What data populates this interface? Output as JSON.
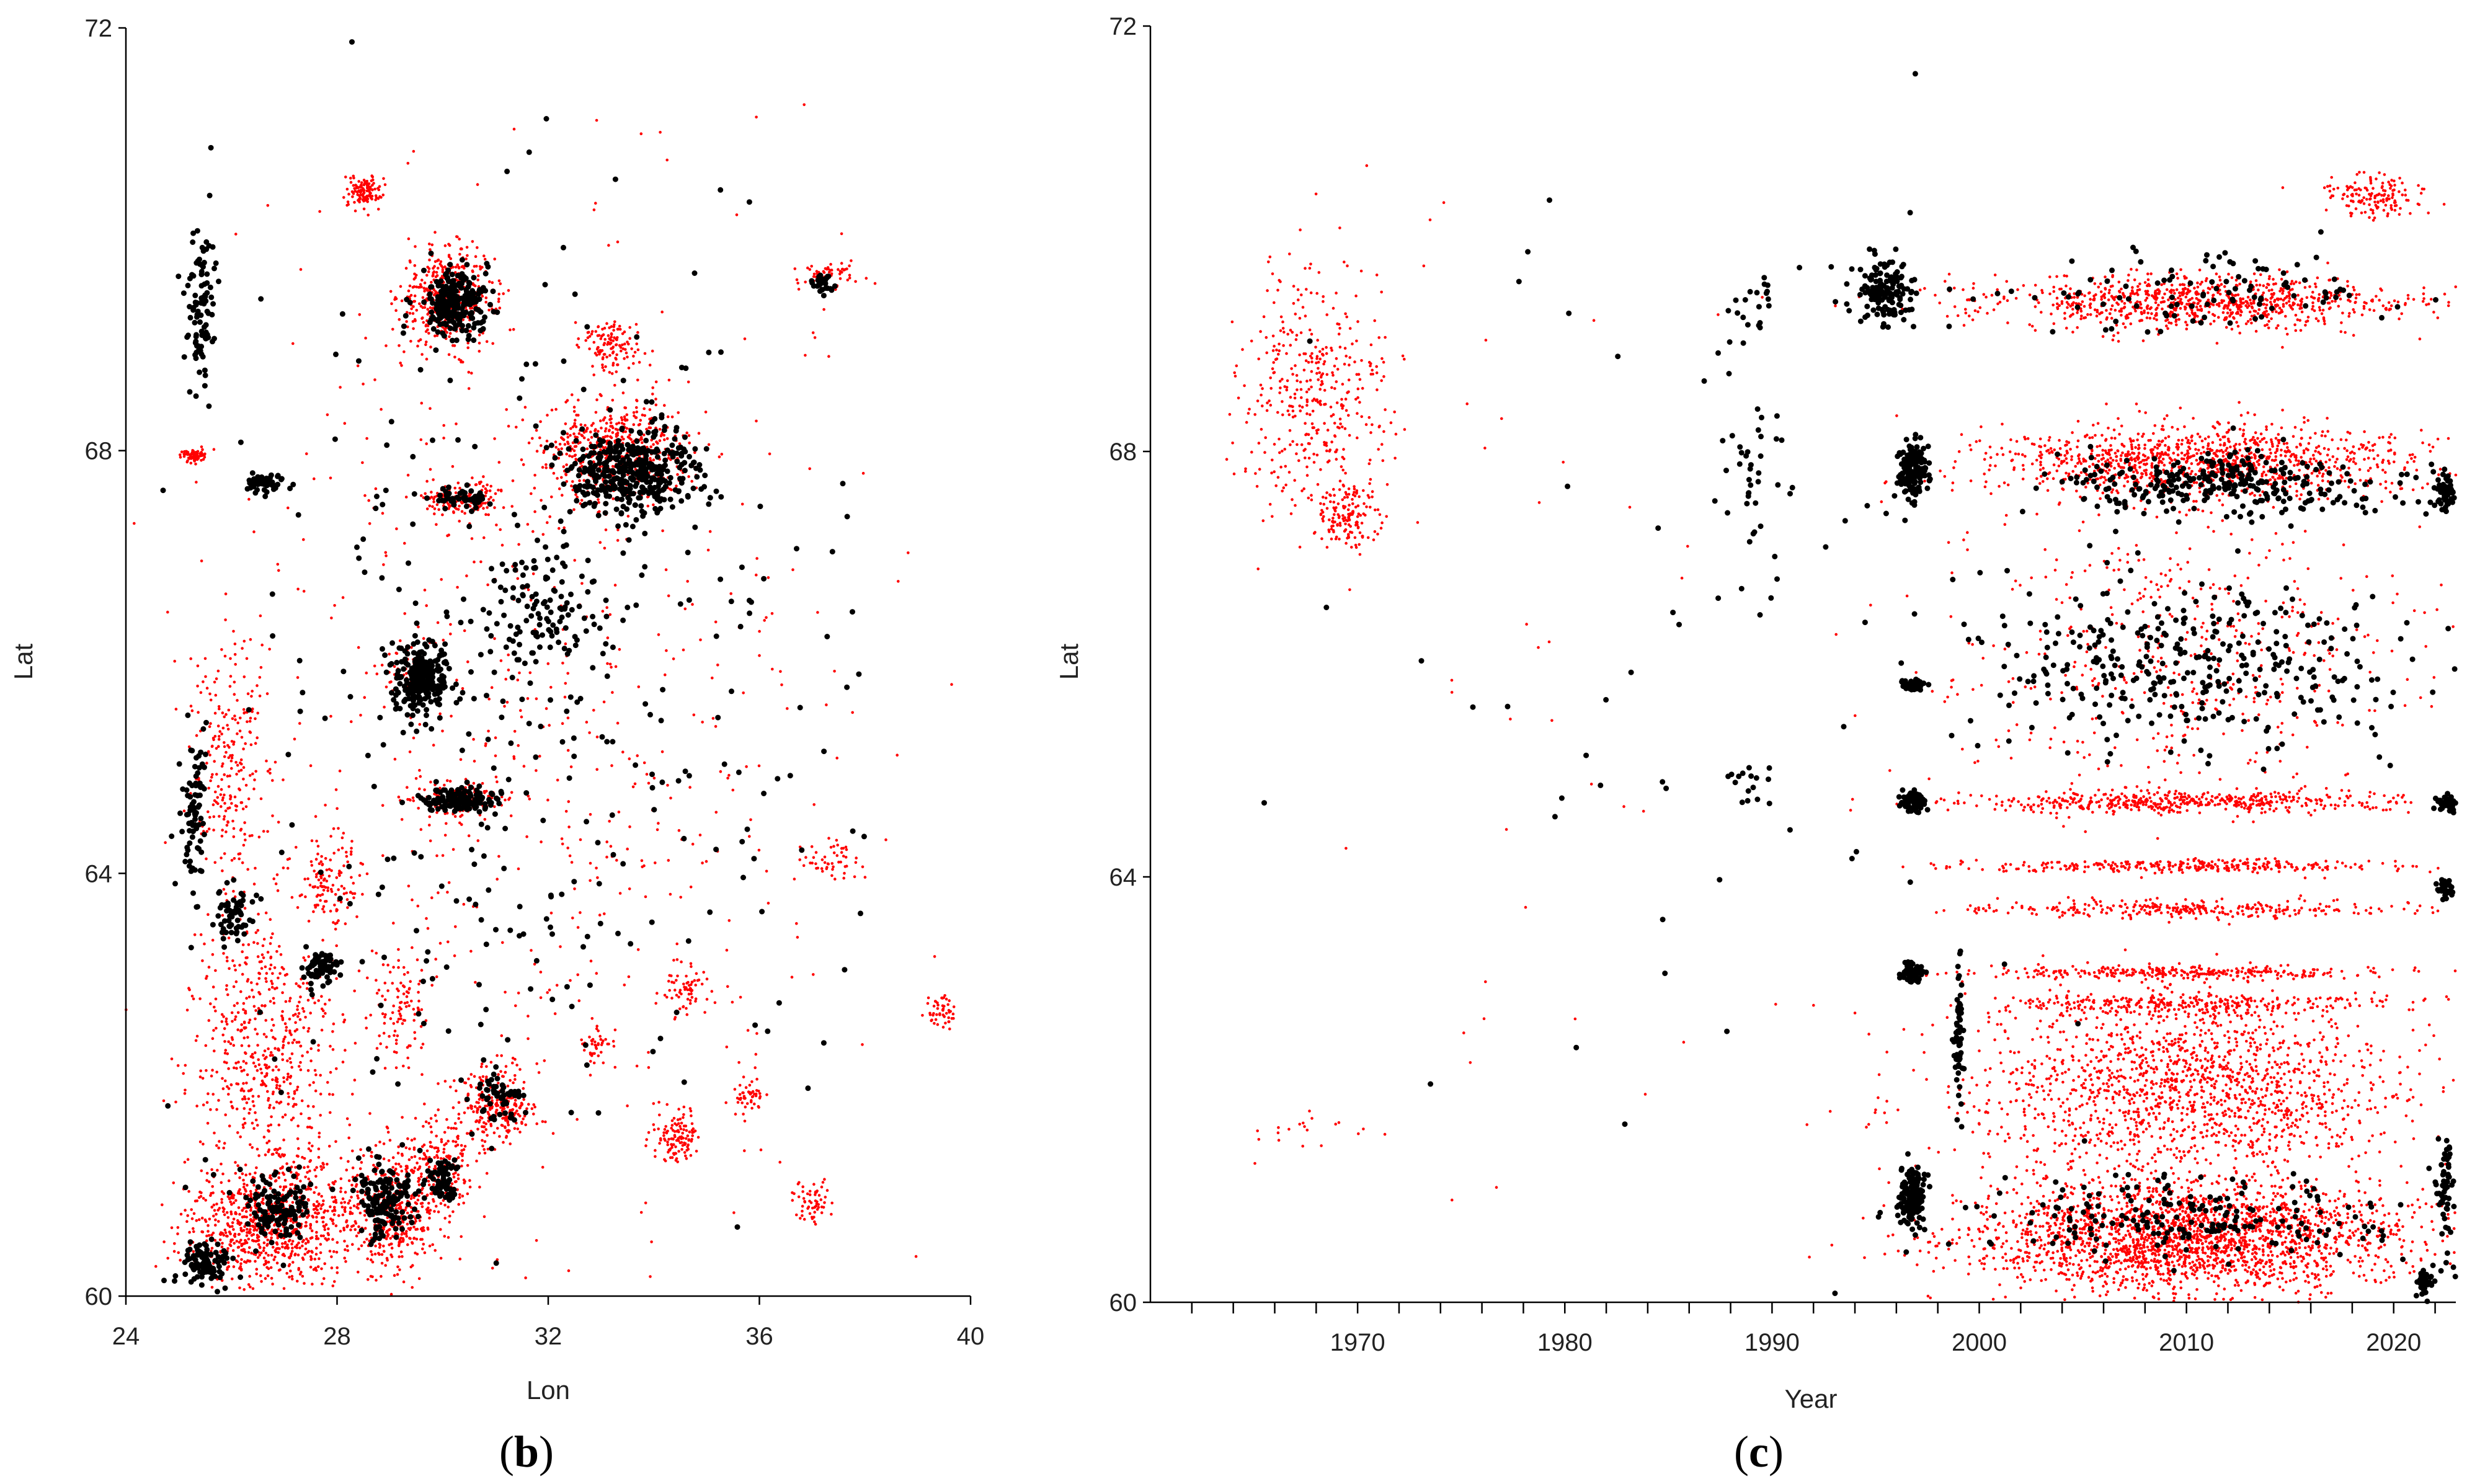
{
  "chart_data": [
    {
      "type": "scatter",
      "panel_label": {
        "open": "(",
        "letter": "b",
        "close": ")"
      },
      "xlabel": "Lon",
      "ylabel": "Lat",
      "xlim": [
        24,
        40
      ],
      "ylim": [
        60,
        72
      ],
      "x_ticks": [
        24,
        28,
        32,
        36,
        40
      ],
      "y_ticks": [
        60,
        64,
        68,
        72
      ],
      "grid": false,
      "legend": "none",
      "series": [
        {
          "color": "#ff0000",
          "marker": "small-dot",
          "clusters": [
            {
              "center": [
                30.1,
                69.45
              ],
              "spread": [
                0.9,
                0.45
              ],
              "count": 450
            },
            {
              "center": [
                28.5,
                70.45
              ],
              "spread": [
                0.35,
                0.15
              ],
              "count": 120
            },
            {
              "center": [
                33.3,
                68.0
              ],
              "spread": [
                1.4,
                0.5
              ],
              "count": 500
            },
            {
              "center": [
                33.2,
                69.0
              ],
              "spread": [
                0.6,
                0.25
              ],
              "count": 120
            },
            {
              "center": [
                30.4,
                67.55
              ],
              "spread": [
                0.8,
                0.15
              ],
              "count": 150
            },
            {
              "center": [
                26.0,
                65.0
              ],
              "spread": [
                0.8,
                1.2
              ],
              "count": 250
            },
            {
              "center": [
                26.6,
                62.4
              ],
              "spread": [
                1.4,
                1.2
              ],
              "count": 550
            },
            {
              "center": [
                26.8,
                60.7
              ],
              "spread": [
                1.6,
                0.6
              ],
              "count": 900
            },
            {
              "center": [
                29.1,
                60.8
              ],
              "spread": [
                0.9,
                0.6
              ],
              "count": 400
            },
            {
              "center": [
                30.0,
                61.2
              ],
              "spread": [
                0.8,
                0.5
              ],
              "count": 200
            },
            {
              "center": [
                31.1,
                61.8
              ],
              "spread": [
                0.8,
                0.35
              ],
              "count": 250
            },
            {
              "center": [
                34.4,
                61.5
              ],
              "spread": [
                0.4,
                0.25
              ],
              "count": 120
            },
            {
              "center": [
                34.6,
                62.9
              ],
              "spread": [
                0.4,
                0.2
              ],
              "count": 60
            },
            {
              "center": [
                35.8,
                61.9
              ],
              "spread": [
                0.3,
                0.2
              ],
              "count": 50
            },
            {
              "center": [
                37.0,
                60.9
              ],
              "spread": [
                0.3,
                0.2
              ],
              "count": 60
            },
            {
              "center": [
                37.4,
                64.1
              ],
              "spread": [
                0.5,
                0.2
              ],
              "count": 50
            },
            {
              "center": [
                39.5,
                62.7
              ],
              "spread": [
                0.3,
                0.2
              ],
              "count": 50
            },
            {
              "center": [
                27.8,
                63.9
              ],
              "spread": [
                0.6,
                0.5
              ],
              "count": 120
            },
            {
              "center": [
                29.2,
                62.7
              ],
              "spread": [
                0.5,
                0.5
              ],
              "count": 100
            },
            {
              "center": [
                25.3,
                67.95
              ],
              "spread": [
                0.25,
                0.06
              ],
              "count": 80
            },
            {
              "center": [
                30.4,
                64.7
              ],
              "spread": [
                0.9,
                0.15
              ],
              "count": 150
            },
            {
              "center": [
                32.9,
                62.4
              ],
              "spread": [
                0.3,
                0.2
              ],
              "count": 40
            },
            {
              "center": [
                37.3,
                69.65
              ],
              "spread": [
                0.6,
                0.12
              ],
              "count": 60
            },
            {
              "center": [
                29.3,
                65.9
              ],
              "spread": [
                0.5,
                0.3
              ],
              "count": 60
            },
            {
              "center": [
                32.0,
                65.5
              ],
              "spread": [
                6.0,
                4.5
              ],
              "count": 600
            }
          ]
        },
        {
          "color": "#000000",
          "marker": "dot",
          "clusters": [
            {
              "center": [
                30.2,
                69.4
              ],
              "spread": [
                0.6,
                0.35
              ],
              "count": 250
            },
            {
              "center": [
                33.6,
                67.8
              ],
              "spread": [
                1.2,
                0.4
              ],
              "count": 400
            },
            {
              "center": [
                29.6,
                65.85
              ],
              "spread": [
                0.5,
                0.3
              ],
              "count": 250
            },
            {
              "center": [
                30.3,
                64.7
              ],
              "spread": [
                0.7,
                0.1
              ],
              "count": 150
            },
            {
              "center": [
                27.7,
                63.1
              ],
              "spread": [
                0.3,
                0.15
              ],
              "count": 80
            },
            {
              "center": [
                28.9,
                60.9
              ],
              "spread": [
                0.5,
                0.35
              ],
              "count": 150
            },
            {
              "center": [
                26.9,
                60.8
              ],
              "spread": [
                0.6,
                0.3
              ],
              "count": 120
            },
            {
              "center": [
                25.5,
                60.3
              ],
              "spread": [
                0.5,
                0.2
              ],
              "count": 100
            },
            {
              "center": [
                30.0,
                61.1
              ],
              "spread": [
                0.4,
                0.2
              ],
              "count": 60
            },
            {
              "center": [
                31.0,
                61.9
              ],
              "spread": [
                0.5,
                0.25
              ],
              "count": 60
            },
            {
              "center": [
                26.6,
                67.7
              ],
              "spread": [
                0.4,
                0.1
              ],
              "count": 50
            },
            {
              "center": [
                30.4,
                67.55
              ],
              "spread": [
                0.5,
                0.1
              ],
              "count": 50
            },
            {
              "center": [
                25.4,
                69.4
              ],
              "spread": [
                0.3,
                0.8
              ],
              "count": 100
            },
            {
              "center": [
                25.3,
                64.5
              ],
              "spread": [
                0.2,
                0.8
              ],
              "count": 80
            },
            {
              "center": [
                26.0,
                63.6
              ],
              "spread": [
                0.4,
                0.3
              ],
              "count": 60
            },
            {
              "center": [
                37.2,
                69.6
              ],
              "spread": [
                0.2,
                0.1
              ],
              "count": 30
            },
            {
              "center": [
                32.0,
                66.5
              ],
              "spread": [
                1.0,
                0.6
              ],
              "count": 100
            },
            {
              "center": [
                32.0,
                65.5
              ],
              "spread": [
                6.0,
                4.5
              ],
              "count": 350
            }
          ]
        }
      ]
    },
    {
      "type": "scatter",
      "panel_label": {
        "open": "(",
        "letter": "c",
        "close": ")"
      },
      "xlabel": "Year",
      "ylabel": "Lat",
      "xlim": [
        1960,
        2023
      ],
      "ylim": [
        60,
        72
      ],
      "x_ticks": [
        1970,
        1980,
        1990,
        2000,
        2010,
        2020
      ],
      "x_minor_ticks": [
        1962,
        1964,
        1966,
        1968,
        1972,
        1974,
        1976,
        1978,
        1982,
        1984,
        1986,
        1988,
        1992,
        1994,
        1996,
        1998,
        2002,
        2004,
        2006,
        2008,
        2012,
        2014,
        2016,
        2018,
        2022
      ],
      "y_ticks": [
        60,
        64,
        68,
        72
      ],
      "grid": false,
      "legend": "none",
      "series": [
        {
          "color": "#ff0000",
          "marker": "small-dot",
          "clusters": [
            {
              "center": [
                1968.0,
                68.5
              ],
              "spread": [
                3.5,
                1.2
              ],
              "count": 400
            },
            {
              "center": [
                1969.5,
                67.4
              ],
              "spread": [
                1.6,
                0.3
              ],
              "count": 150
            },
            {
              "center": [
                1967.5,
                61.6
              ],
              "spread": [
                3.0,
                0.2
              ],
              "count": 20
            },
            {
              "center": [
                1978.0,
                66.0
              ],
              "spread": [
                8.0,
                5.0
              ],
              "count": 40
            },
            {
              "center": [
                2010.5,
                69.4
              ],
              "spread": [
                10.5,
                0.25
              ],
              "count": 900
            },
            {
              "center": [
                2019.0,
                70.4
              ],
              "spread": [
                2.5,
                0.2
              ],
              "count": 150
            },
            {
              "center": [
                2010.5,
                67.9
              ],
              "spread": [
                10.5,
                0.35
              ],
              "count": 1100
            },
            {
              "center": [
                2010.0,
                64.7
              ],
              "spread": [
                10.5,
                0.1
              ],
              "count": 500
            },
            {
              "center": [
                2010.0,
                64.1
              ],
              "spread": [
                10.5,
                0.06
              ],
              "count": 300
            },
            {
              "center": [
                2010.0,
                63.7
              ],
              "spread": [
                10.5,
                0.08
              ],
              "count": 300
            },
            {
              "center": [
                2010.0,
                63.1
              ],
              "spread": [
                10.5,
                0.06
              ],
              "count": 300
            },
            {
              "center": [
                2010.0,
                62.8
              ],
              "spread": [
                10.5,
                0.1
              ],
              "count": 300
            },
            {
              "center": [
                2010.0,
                62.0
              ],
              "spread": [
                10.5,
                0.9
              ],
              "count": 1600
            },
            {
              "center": [
                2010.0,
                60.6
              ],
              "spread": [
                10.5,
                0.5
              ],
              "count": 2200
            },
            {
              "center": [
                2010.0,
                66.0
              ],
              "spread": [
                10.5,
                1.5
              ],
              "count": 500
            }
          ]
        },
        {
          "color": "#000000",
          "marker": "dot",
          "clusters": [
            {
              "center": [
                1995.5,
                69.5
              ],
              "spread": [
                1.5,
                0.3
              ],
              "count": 150
            },
            {
              "center": [
                1996.8,
                67.8
              ],
              "spread": [
                0.7,
                0.3
              ],
              "count": 150
            },
            {
              "center": [
                1996.8,
                64.7
              ],
              "spread": [
                0.6,
                0.1
              ],
              "count": 70
            },
            {
              "center": [
                1996.8,
                63.1
              ],
              "spread": [
                0.6,
                0.1
              ],
              "count": 60
            },
            {
              "center": [
                1996.8,
                61.0
              ],
              "spread": [
                0.7,
                0.3
              ],
              "count": 150
            },
            {
              "center": [
                1996.8,
                65.8
              ],
              "spread": [
                0.6,
                0.08
              ],
              "count": 40
            },
            {
              "center": [
                1989.0,
                67.8
              ],
              "spread": [
                1.5,
                1.2
              ],
              "count": 40
            },
            {
              "center": [
                1989.0,
                69.3
              ],
              "spread": [
                1.0,
                0.3
              ],
              "count": 20
            },
            {
              "center": [
                1989.0,
                64.9
              ],
              "spread": [
                1.0,
                0.2
              ],
              "count": 15
            },
            {
              "center": [
                2012.0,
                67.7
              ],
              "spread": [
                8.0,
                0.3
              ],
              "count": 300
            },
            {
              "center": [
                2022.5,
                67.6
              ],
              "spread": [
                0.5,
                0.15
              ],
              "count": 60
            },
            {
              "center": [
                2022.5,
                64.7
              ],
              "spread": [
                0.5,
                0.1
              ],
              "count": 40
            },
            {
              "center": [
                2022.5,
                63.9
              ],
              "spread": [
                0.5,
                0.1
              ],
              "count": 30
            },
            {
              "center": [
                2022.5,
                61.0
              ],
              "spread": [
                0.5,
                0.6
              ],
              "count": 60
            },
            {
              "center": [
                2021.5,
                60.2
              ],
              "spread": [
                0.4,
                0.15
              ],
              "count": 40
            },
            {
              "center": [
                2010.0,
                66.0
              ],
              "spread": [
                11.0,
                0.8
              ],
              "count": 350
            },
            {
              "center": [
                2010.0,
                60.8
              ],
              "spread": [
                10.0,
                0.4
              ],
              "count": 200
            },
            {
              "center": [
                2010.0,
                69.5
              ],
              "spread": [
                10.0,
                0.4
              ],
              "count": 100
            },
            {
              "center": [
                1999.0,
                62.5
              ],
              "spread": [
                0.2,
                0.9
              ],
              "count": 60
            },
            {
              "center": [
                1985.0,
                66.0
              ],
              "spread": [
                15.0,
                5.5
              ],
              "count": 60
            }
          ]
        }
      ]
    }
  ]
}
